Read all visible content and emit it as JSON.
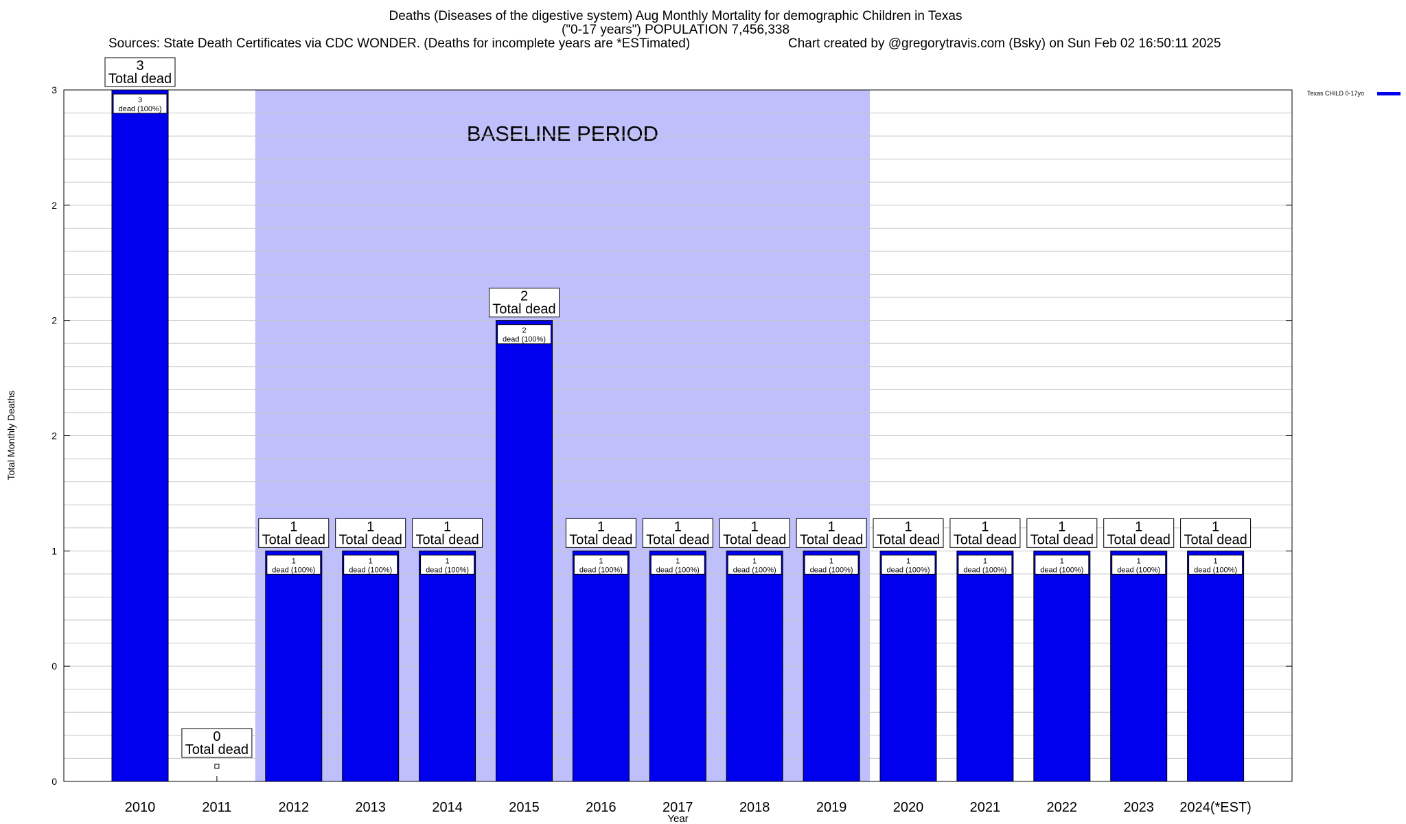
{
  "header": {
    "title_line1": "Deaths (Diseases of the digestive system) Aug Monthly Mortality for demographic Children in Texas",
    "title_line2": "(\"0-17 years\") POPULATION 7,456,338",
    "sources": "Sources: State Death Certificates via CDC WONDER. (Deaths for incomplete years are *ESTimated)",
    "credit": "Chart created by @gregorytravis.com (Bsky) on Sun Feb 02 16:50:11 2025"
  },
  "chart_data": {
    "type": "bar",
    "xlabel": "Year",
    "ylabel": "Total Monthly Deaths",
    "ylim": [
      0,
      3
    ],
    "y_ticks": [
      {
        "value": 0,
        "label": "0"
      },
      {
        "value": 0.5,
        "label": "0"
      },
      {
        "value": 1,
        "label": "1"
      },
      {
        "value": 1.5,
        "label": "2"
      },
      {
        "value": 2,
        "label": "2"
      },
      {
        "value": 2.5,
        "label": "2"
      },
      {
        "value": 3,
        "label": "3"
      }
    ],
    "categories": [
      "2010",
      "2011",
      "2012",
      "2013",
      "2014",
      "2015",
      "2016",
      "2017",
      "2018",
      "2019",
      "2020",
      "2021",
      "2022",
      "2023",
      "2024(*EST)"
    ],
    "series": [
      {
        "name": "Texas CHILD 0-17yo",
        "color": "#0000ee",
        "values": [
          3,
          0,
          1,
          1,
          1,
          2,
          1,
          1,
          1,
          1,
          1,
          1,
          1,
          1,
          1
        ],
        "total_labels": [
          "3",
          "0",
          "1",
          "1",
          "1",
          "2",
          "1",
          "1",
          "1",
          "1",
          "1",
          "1",
          "1",
          "1",
          "1"
        ],
        "inner_labels": [
          "3",
          "",
          "1",
          "1",
          "1",
          "2",
          "1",
          "1",
          "1",
          "1",
          "1",
          "1",
          "1",
          "1",
          "1"
        ]
      }
    ],
    "total_suffix": "Total dead",
    "inner_suffix": "dead (100%)",
    "baseline": {
      "label": "BASELINE PERIOD",
      "from": "2012",
      "to": "2019",
      "color": "#bfbffc"
    },
    "grid": true,
    "legend": "top-right"
  }
}
